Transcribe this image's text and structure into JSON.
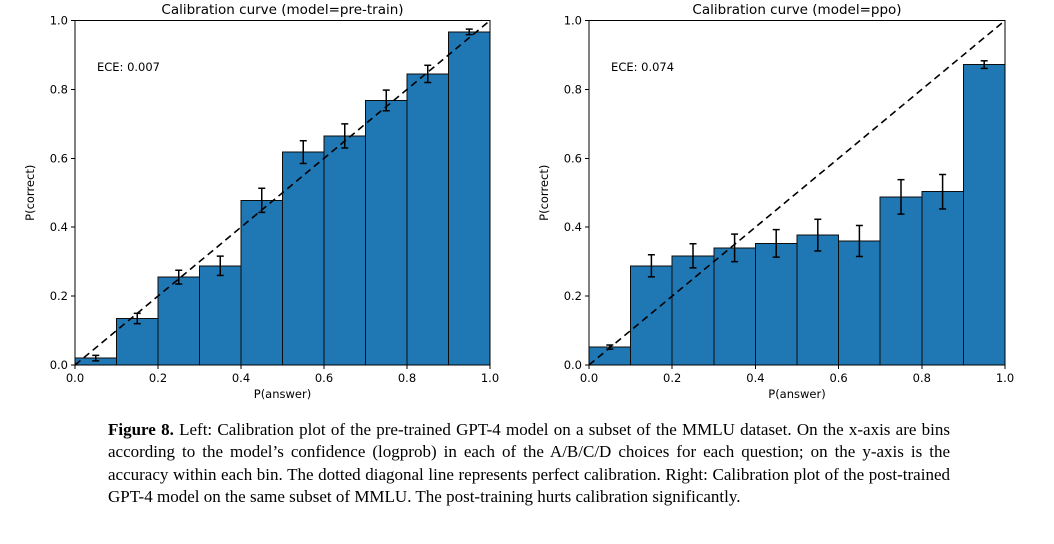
{
  "figure": {
    "caption_label": "Figure 8.",
    "caption_text": "Left: Calibration plot of the pre-trained GPT-4 model on a subset of the MMLU dataset. On the x-axis are bins according to the model’s confidence (logprob) in each of the A/B/C/D choices for each question; on the y-axis is the accuracy within each bin. The dotted diagonal line represents perfect calibration. Right: Calibration plot of the post-trained GPT-4 model on the same subset of MMLU. The post-training hurts calibration significantly."
  },
  "style": {
    "bar_color": "#1f77b4",
    "edge_color": "#0d0d0d",
    "axis_color": "#000000",
    "text_color": "#000000",
    "background": "#ffffff"
  },
  "chart_data": [
    {
      "type": "bar",
      "title": "Calibration curve (model=pre-train)",
      "annotation": "ECE: 0.007",
      "xlabel": "P(answer)",
      "ylabel": "P(correct)",
      "xlim": [
        0,
        1
      ],
      "ylim": [
        0,
        1
      ],
      "xticks": [
        "0.0",
        "0.2",
        "0.4",
        "0.6",
        "0.8",
        "1.0"
      ],
      "yticks": [
        "0.0",
        "0.2",
        "0.4",
        "0.6",
        "0.8",
        "1.0"
      ],
      "grid": false,
      "legend": null,
      "diagonal_reference_line": true,
      "bin_edges": [
        0.0,
        0.1,
        0.2,
        0.3,
        0.4,
        0.5,
        0.6,
        0.7,
        0.8,
        0.9,
        1.0
      ],
      "values": [
        0.02,
        0.135,
        0.255,
        0.288,
        0.478,
        0.618,
        0.665,
        0.768,
        0.845,
        0.967
      ],
      "errors": [
        0.008,
        0.015,
        0.02,
        0.028,
        0.035,
        0.033,
        0.035,
        0.03,
        0.025,
        0.008
      ]
    },
    {
      "type": "bar",
      "title": "Calibration curve (model=ppo)",
      "annotation": "ECE: 0.074",
      "xlabel": "P(answer)",
      "ylabel": "P(correct)",
      "xlim": [
        0,
        1
      ],
      "ylim": [
        0,
        1
      ],
      "xticks": [
        "0.0",
        "0.2",
        "0.4",
        "0.6",
        "0.8",
        "1.0"
      ],
      "yticks": [
        "0.0",
        "0.2",
        "0.4",
        "0.6",
        "0.8",
        "1.0"
      ],
      "grid": false,
      "legend": null,
      "diagonal_reference_line": true,
      "bin_edges": [
        0.0,
        0.1,
        0.2,
        0.3,
        0.4,
        0.5,
        0.6,
        0.7,
        0.8,
        0.9,
        1.0
      ],
      "values": [
        0.052,
        0.288,
        0.317,
        0.34,
        0.353,
        0.377,
        0.36,
        0.488,
        0.503,
        0.872
      ],
      "errors": [
        0.006,
        0.032,
        0.035,
        0.04,
        0.04,
        0.046,
        0.045,
        0.05,
        0.05,
        0.011
      ]
    }
  ]
}
